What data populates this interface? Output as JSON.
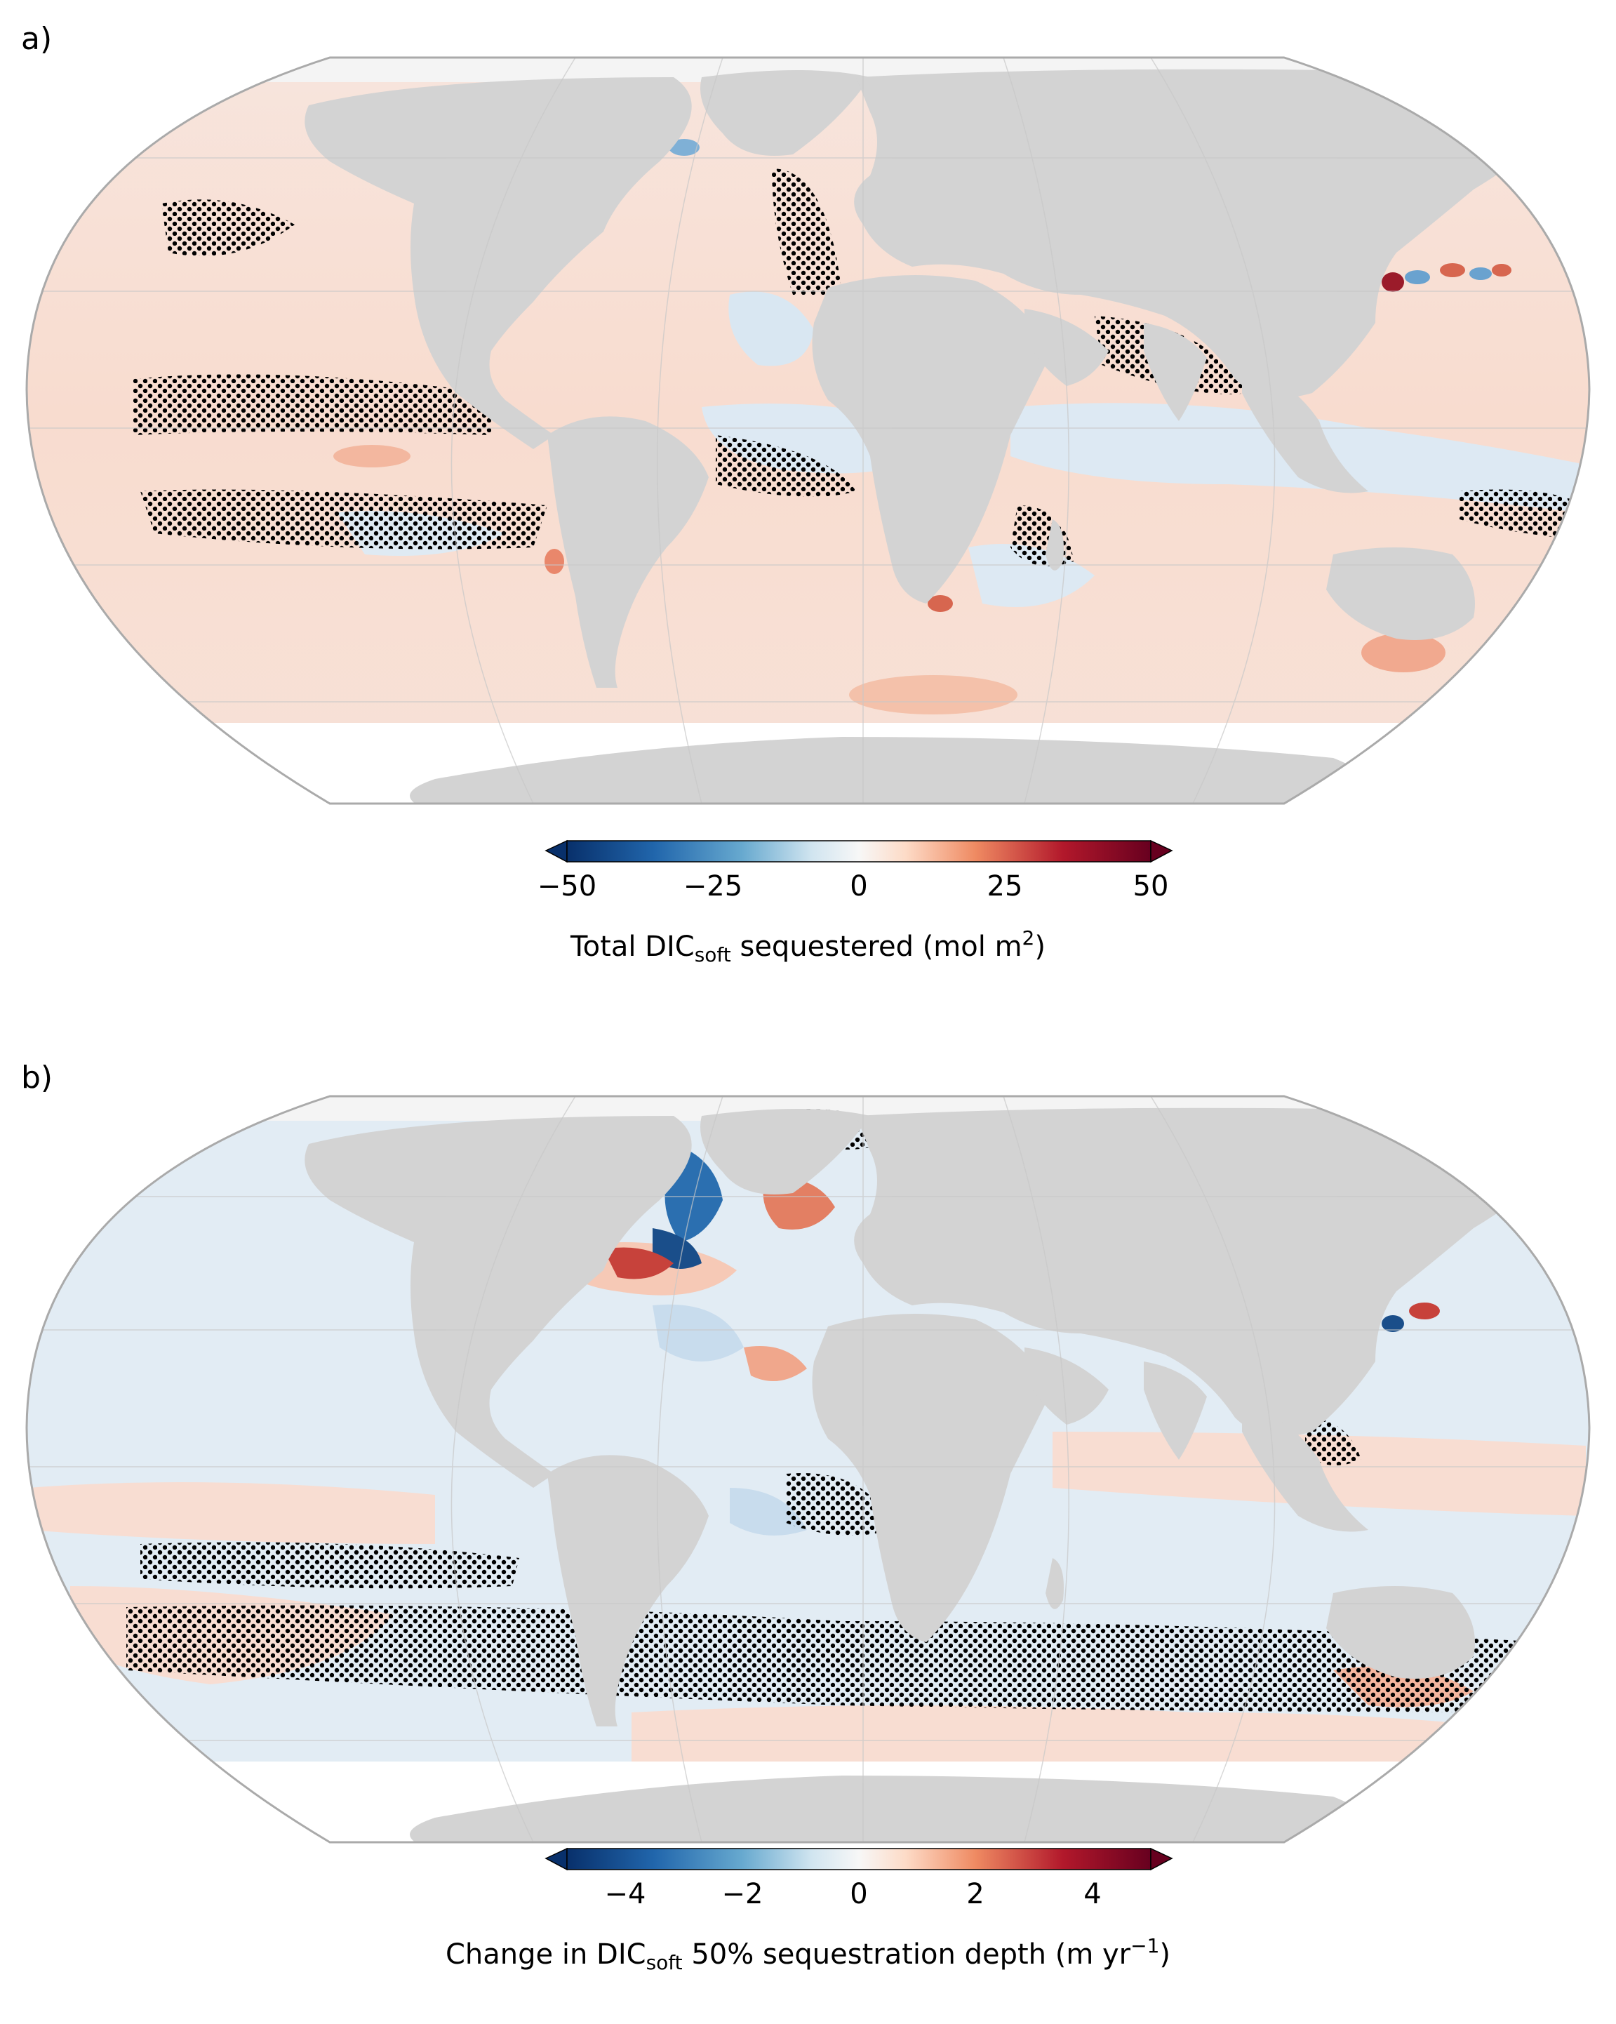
{
  "panels": [
    {
      "label": "a)",
      "colorbar": {
        "ticks": [
          "−50",
          "−25",
          "0",
          "25",
          "50"
        ],
        "range": [
          -50,
          50
        ],
        "title_main": "Total DIC",
        "title_sub": "soft",
        "title_rest": " sequestered (mol m",
        "title_sup": "2",
        "title_end": ")"
      }
    },
    {
      "label": "b)",
      "colorbar": {
        "ticks": [
          "−4",
          "−2",
          "0",
          "2",
          "4"
        ],
        "range": [
          -5,
          5
        ],
        "title_main": "Change in DIC",
        "title_sub": "soft",
        "title_rest": " 50% sequestration depth (m yr",
        "title_sup": "−1",
        "title_end": ")"
      }
    }
  ],
  "colors": {
    "land": "#d3d3d3",
    "ocean_pos": "#f8ddd2",
    "ocean_neg": "#dde9f3",
    "strong_pos": "#c0383a",
    "strong_neg": "#2b6fb0",
    "polar": "#f4f4f4",
    "border": "#aaaaaa"
  }
}
